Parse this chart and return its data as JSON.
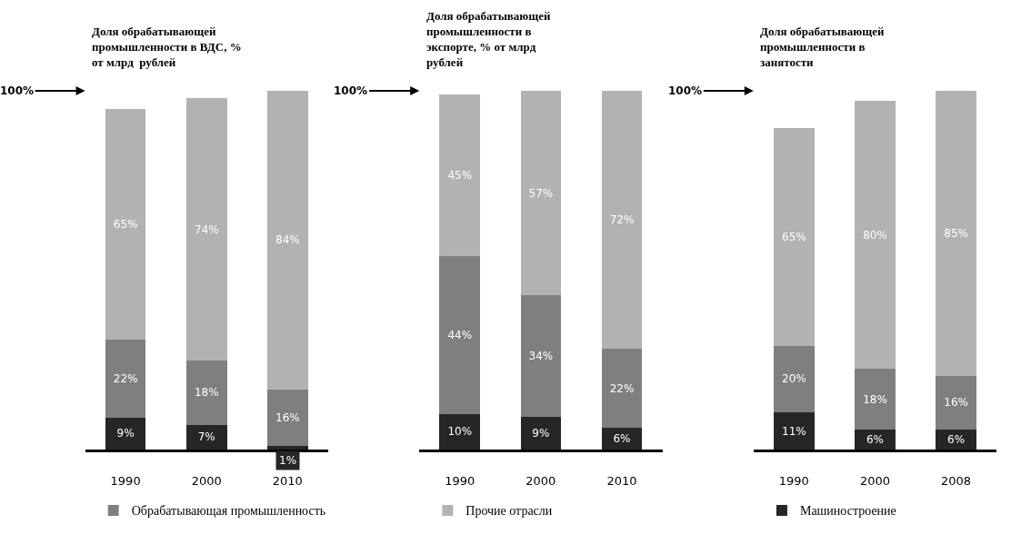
{
  "chart_data": [
    {
      "type": "bar",
      "title": "Доля обрабатывающей промышленности в ВДС, % от млрд  рублей",
      "categories": [
        "1990",
        "2000",
        "2010"
      ],
      "stacked": true,
      "legend": "bottom",
      "annotations": [
        "100%"
      ],
      "series": [
        {
          "color": "#262626",
          "values": [
            9,
            7,
            1
          ],
          "value_labels": [
            "9%",
            "7%",
            "1%"
          ]
        },
        {
          "name": "Обрабатывающая промышленность",
          "color": "#7f7f7f",
          "values": [
            22,
            18,
            16
          ],
          "value_labels": [
            "22%",
            "18%",
            "16%"
          ]
        },
        {
          "color": "#b2b2b2",
          "values": [
            65,
            74,
            84
          ],
          "value_labels": [
            "65%",
            "74%",
            "84%"
          ]
        }
      ]
    },
    {
      "type": "bar",
      "title": "Доля обрабатывающей промышленности в экспорте, % от млрд  рублей",
      "categories": [
        "1990",
        "2000",
        "2010"
      ],
      "stacked": true,
      "legend": "bottom",
      "annotations": [
        "100%"
      ],
      "series": [
        {
          "color": "#262626",
          "values": [
            10,
            9,
            6
          ],
          "value_labels": [
            "10%",
            "9%",
            "6%"
          ]
        },
        {
          "color": "#7f7f7f",
          "values": [
            44,
            34,
            22
          ],
          "value_labels": [
            "44%",
            "34%",
            "22%"
          ]
        },
        {
          "name": "Прочие отрасли",
          "color": "#b2b2b2",
          "values": [
            45,
            57,
            72
          ],
          "value_labels": [
            "45%",
            "57%",
            "72%"
          ]
        }
      ]
    },
    {
      "type": "bar",
      "title": "Доля обрабатывающей промышленности в занятости",
      "categories": [
        "1990",
        "2000",
        "2008"
      ],
      "stacked": true,
      "legend": "bottom",
      "annotations": [
        "100%"
      ],
      "series": [
        {
          "name": "Машиностроение",
          "color": "#262626",
          "values": [
            11,
            6,
            6
          ],
          "value_labels": [
            "11%",
            "6%",
            "6%"
          ]
        },
        {
          "color": "#7f7f7f",
          "values": [
            20,
            18,
            16
          ],
          "value_labels": [
            "20%",
            "18%",
            "16%"
          ]
        },
        {
          "color": "#b2b2b2",
          "values": [
            65,
            80,
            85
          ],
          "value_labels": [
            "65%",
            "80%",
            "85%"
          ]
        }
      ]
    }
  ]
}
